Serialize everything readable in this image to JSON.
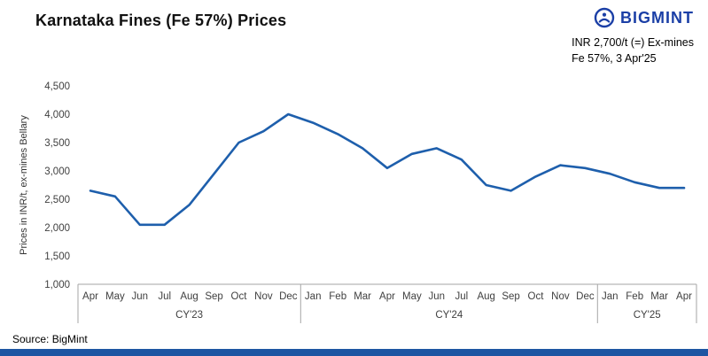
{
  "title": "Karnataka Fines (Fe 57%) Prices",
  "logo": {
    "text": "BIGMINT"
  },
  "annotation": {
    "line1": "INR 2,700/t (=) Ex-mines",
    "line2": "Fe 57%, 3 Apr'25"
  },
  "source": "Source: BigMint",
  "colors": {
    "line": "#1E5FAC",
    "footer_bar": "#1D55A2",
    "logo": "#1B3FA6",
    "axis": "#A6A6A6",
    "label": "#404040"
  },
  "chart_data": {
    "type": "line",
    "title": "Karnataka Fines (Fe 57%) Prices",
    "ylabel": "Prices in INR/t, ex-mines Bellary",
    "xlabel": "",
    "ylim": [
      1000,
      4500
    ],
    "ytick_step": 500,
    "grid": false,
    "legend": false,
    "x": [
      "Apr",
      "May",
      "Jun",
      "Jul",
      "Aug",
      "Sep",
      "Oct",
      "Nov",
      "Dec",
      "Jan",
      "Feb",
      "Mar",
      "Apr",
      "May",
      "Jun",
      "Jul",
      "Aug",
      "Sep",
      "Oct",
      "Nov",
      "Dec",
      "Jan",
      "Feb",
      "Mar",
      "Apr"
    ],
    "year_groups": [
      {
        "label": "CY'23",
        "count": 9
      },
      {
        "label": "CY'24",
        "count": 12
      },
      {
        "label": "CY'25",
        "count": 4
      }
    ],
    "series": [
      {
        "name": "Karnataka Fines (Fe 57%) ex-mines Bellary price, INR/t",
        "values": [
          2650,
          2550,
          2050,
          2050,
          2400,
          2950,
          3500,
          3700,
          4000,
          3850,
          3650,
          3400,
          3050,
          3300,
          3400,
          3200,
          2750,
          2650,
          2900,
          3100,
          3050,
          2950,
          2800,
          2700,
          2700
        ]
      }
    ]
  }
}
